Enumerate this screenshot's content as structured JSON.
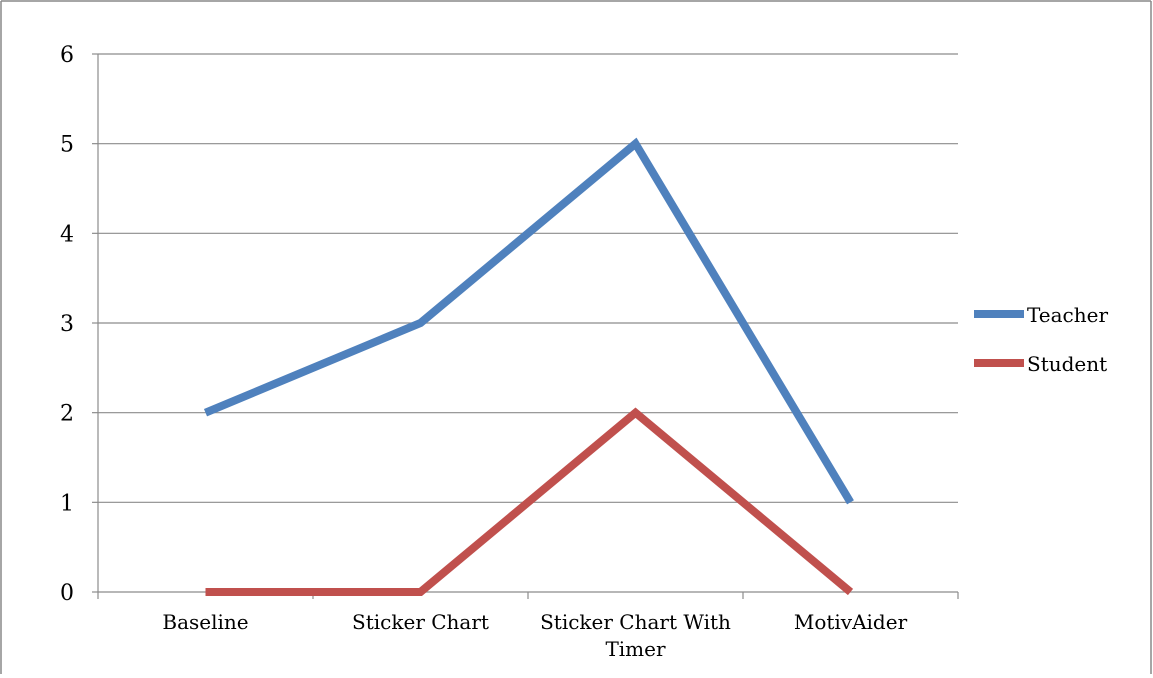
{
  "chart_data": {
    "type": "line",
    "categories": [
      "Baseline",
      "Sticker Chart",
      "Sticker Chart With Timer",
      "MotivAider"
    ],
    "category_label_lines": [
      [
        "Baseline"
      ],
      [
        "Sticker Chart"
      ],
      [
        "Sticker Chart With",
        "Timer"
      ],
      [
        "MotivAider"
      ]
    ],
    "series": [
      {
        "name": "Teacher",
        "values": [
          2,
          3,
          5,
          1
        ],
        "color": "#4F81BD"
      },
      {
        "name": "Student",
        "values": [
          0,
          0,
          2,
          0
        ],
        "color": "#C0504D"
      }
    ],
    "ylim": [
      0,
      6
    ],
    "yticks": [
      "0",
      "1",
      "2",
      "3",
      "4",
      "5",
      "6"
    ],
    "grid": true,
    "legend_position": "right"
  }
}
